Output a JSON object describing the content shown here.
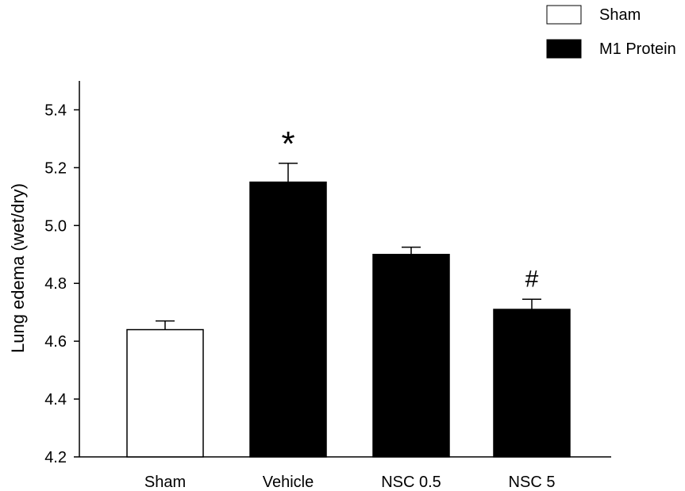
{
  "chart_data": {
    "type": "bar",
    "title": "",
    "xlabel": "",
    "ylabel": "Lung edema (wet/dry)",
    "ylim": [
      4.2,
      5.5
    ],
    "yticks": [
      4.2,
      4.4,
      4.6,
      4.8,
      5.0,
      5.2,
      5.4
    ],
    "ytick_labels": [
      "4.2",
      "4.4",
      "4.6",
      "4.8",
      "5.0",
      "5.2",
      "5.4"
    ],
    "grid": false,
    "categories": [
      "Sham",
      "Vehicle",
      "NSC 0.5",
      "NSC 5"
    ],
    "values": [
      4.64,
      5.15,
      4.9,
      4.71
    ],
    "errors": [
      0.03,
      0.065,
      0.025,
      0.035
    ],
    "bar_groups": [
      "Sham",
      "M1 Protein",
      "M1 Protein",
      "M1 Protein"
    ],
    "annotations": [
      "",
      "*",
      "",
      "#"
    ],
    "legend": {
      "placement": "top-right",
      "entries": [
        {
          "label": "Sham",
          "color": "#ffffff"
        },
        {
          "label": "M1 Protein",
          "color": "#000000"
        }
      ]
    }
  }
}
